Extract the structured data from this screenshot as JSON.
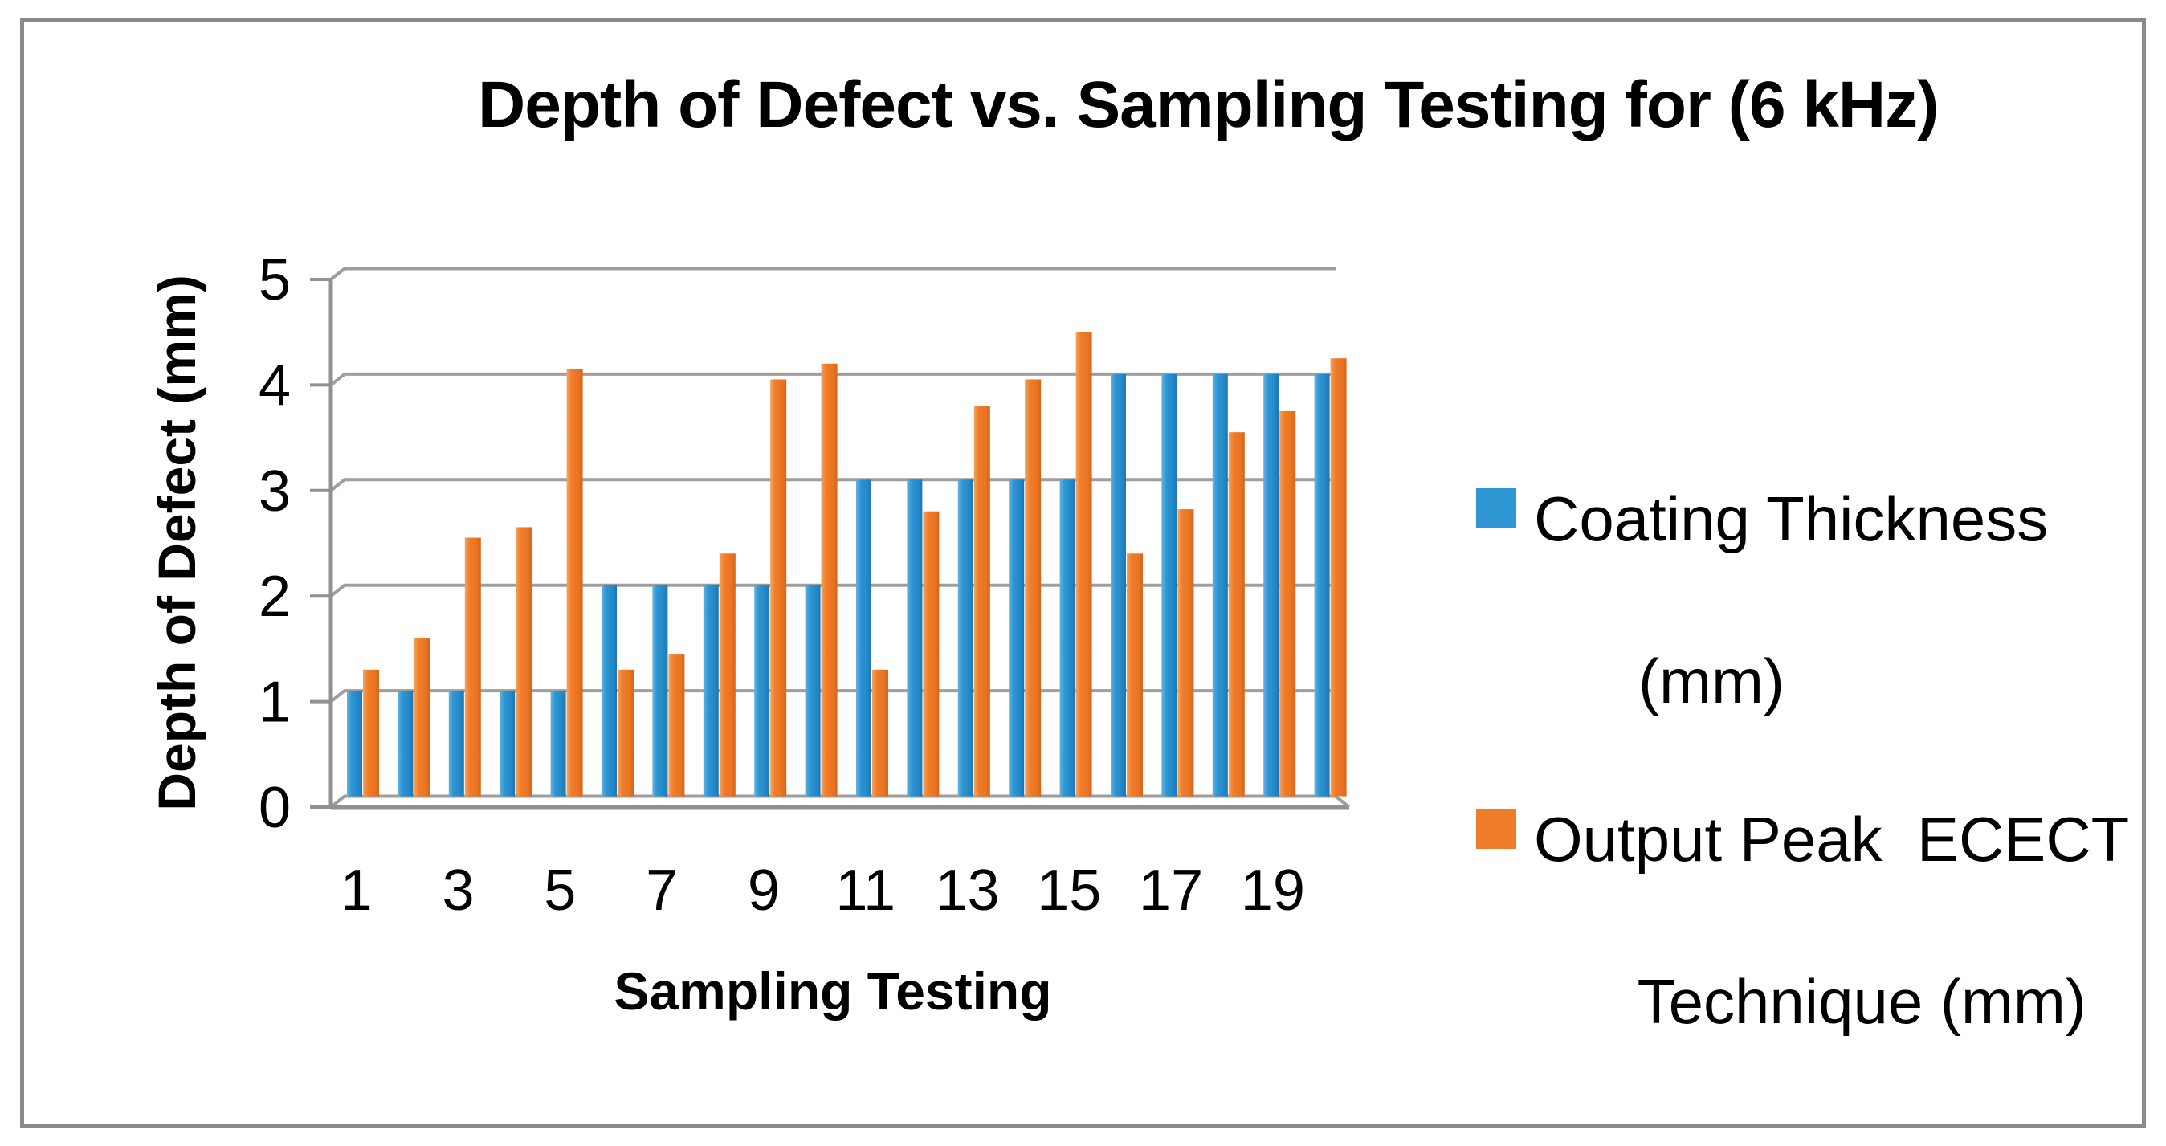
{
  "title": "Depth of Defect vs. Sampling Testing for (6 kHz)",
  "chart_data": {
    "type": "bar",
    "title": "Depth of Defect vs. Sampling Testing for (6 kHz)",
    "xlabel": "Sampling Testing",
    "ylabel": "Depth of Defect (mm)",
    "ylim": [
      0,
      5
    ],
    "yticks": [
      0,
      1,
      2,
      3,
      4,
      5
    ],
    "grid": true,
    "legend_position": "right",
    "categories": [
      1,
      2,
      3,
      4,
      5,
      6,
      7,
      8,
      9,
      10,
      11,
      12,
      13,
      14,
      15,
      16,
      17,
      18,
      19,
      20
    ],
    "x_tick_labels": [
      "1",
      "3",
      "5",
      "7",
      "9",
      "11",
      "13",
      "15",
      "17",
      "19"
    ],
    "series": [
      {
        "name": "Coating Thickness (mm)",
        "color": "#2E96D3",
        "values": [
          1,
          1,
          1,
          1,
          1,
          2,
          2,
          2,
          2,
          2,
          3,
          3,
          3,
          3,
          3,
          4,
          4,
          4,
          4,
          4
        ]
      },
      {
        "name": "Output Peak  ECECT Technique (mm)",
        "color": "#F07D2A",
        "values": [
          1.2,
          1.5,
          2.45,
          2.55,
          4.05,
          1.2,
          1.35,
          2.3,
          3.95,
          4.1,
          1.2,
          2.7,
          3.7,
          3.95,
          4.4,
          2.3,
          2.72,
          3.45,
          3.65,
          4.15
        ]
      }
    ]
  },
  "legend": {
    "items": [
      {
        "color": "#2E96D3",
        "lines": [
          "Coating Thickness",
          "(mm)"
        ]
      },
      {
        "color": "#F07D2A",
        "lines": [
          "Output Peak  ECECT",
          "Technique (mm)"
        ]
      }
    ]
  },
  "colors": {
    "grid": "#9e9e9e",
    "axis": "#919191",
    "frame_border": "#8a8a8a",
    "blue_light": "#63b3e0",
    "blue_main": "#2E96D3",
    "blue_dark": "#1d76b4",
    "orange_light": "#f6a35d",
    "orange_main": "#F07D2A",
    "orange_dark": "#d2661c"
  }
}
